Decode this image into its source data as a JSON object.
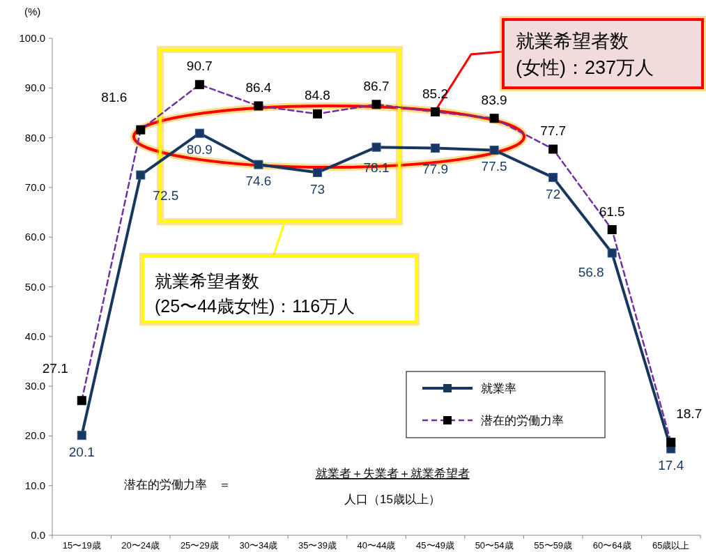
{
  "chart_data": {
    "type": "line",
    "ylabel": "(%)",
    "categories": [
      "15〜19歳",
      "20〜24歳",
      "25〜29歳",
      "30〜34歳",
      "35〜39歳",
      "40〜44歳",
      "45〜49歳",
      "50〜54歳",
      "55〜59歳",
      "60〜64歳",
      "65歳以上"
    ],
    "series": [
      {
        "name": "就業率",
        "color": "#17375e",
        "line_style": "solid",
        "values": [
          20.1,
          72.5,
          80.9,
          74.6,
          73,
          78.1,
          77.9,
          77.5,
          72,
          56.8,
          17.4
        ]
      },
      {
        "name": "潜在的労働力率",
        "color": "#7030a0",
        "line_style": "dashed",
        "values": [
          27.1,
          81.6,
          90.7,
          86.4,
          84.8,
          86.7,
          85.2,
          83.9,
          77.7,
          61.5,
          18.7
        ]
      }
    ],
    "ylim": [
      0,
      100
    ],
    "yticks": [
      {
        "value": 0,
        "label": "0.0"
      },
      {
        "value": 10,
        "label": "10.0"
      },
      {
        "value": 20,
        "label": "20.0"
      },
      {
        "value": 30,
        "label": "30.0"
      },
      {
        "value": 40,
        "label": "40.0"
      },
      {
        "value": 50,
        "label": "50.0"
      },
      {
        "value": 60,
        "label": "60.0"
      },
      {
        "value": 70,
        "label": "70.0"
      },
      {
        "value": 80,
        "label": "80.0"
      },
      {
        "value": 90,
        "label": "90.0"
      },
      {
        "value": 100,
        "label": "100.0"
      }
    ],
    "marker": "square",
    "data_labels": true,
    "grid": false,
    "legend": "bottom right",
    "annotations": [
      {
        "text": "就業希望者数\n(女性)：237万人",
        "x": "45〜49歳",
        "y": 85.4
      },
      "就業希望者数\n(25〜44歳女性)：116万人",
      "潜在的労働力率　＝",
      "就業者＋失業者＋就業希望者",
      "人口（15歳以上）"
    ]
  }
}
